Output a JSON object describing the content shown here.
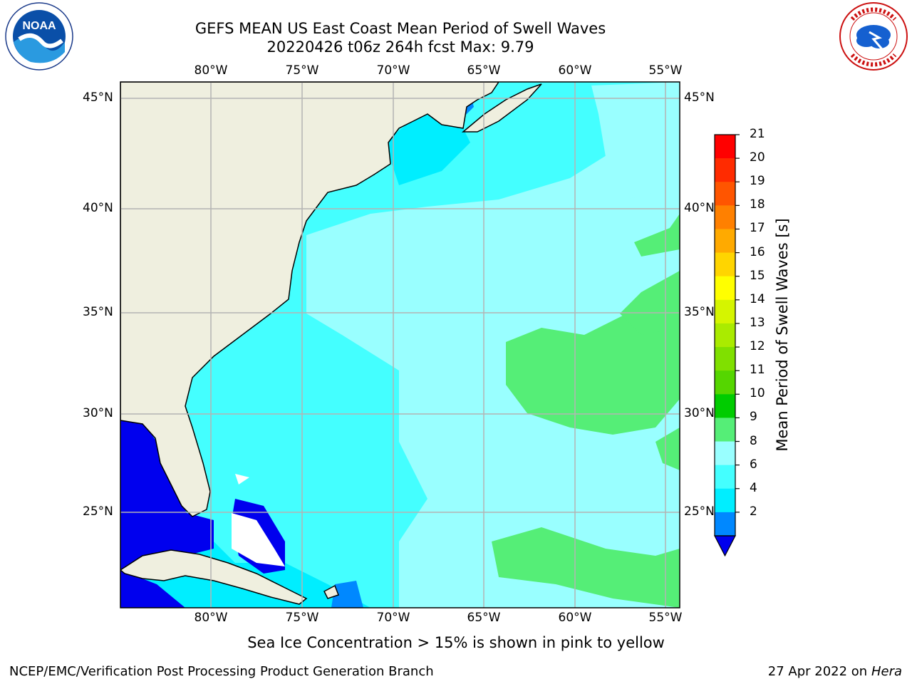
{
  "header": {
    "title_line1": "GEFS MEAN US East Coast Mean Period of Swell Waves",
    "title_line2": "20220426 t06z 264h fcst   Max: 9.79"
  },
  "logos": {
    "left": {
      "icon": "noaa-logo",
      "text": "NOAA"
    },
    "right": {
      "icon": "national-weather-service-logo"
    }
  },
  "map": {
    "region": "US East Coast / Western North Atlantic",
    "lon_labels": [
      "80°W",
      "75°W",
      "70°W",
      "65°W",
      "60°W",
      "55°W"
    ],
    "lat_labels": [
      "45°N",
      "40°N",
      "35°N",
      "30°N",
      "25°N"
    ],
    "colors": {
      "land": "#efefdf",
      "grid": "#b4b4b4",
      "coast": "#000000",
      "no_data": "#ffffff"
    }
  },
  "colorbar": {
    "label": "Mean Period of Swell Waves [s]",
    "ticks": [
      "21",
      "20",
      "19",
      "18",
      "17",
      "16",
      "15",
      "14",
      "13",
      "12",
      "11",
      "10",
      "9",
      "8",
      "6",
      "4",
      "2"
    ],
    "colors": [
      "#ff0000",
      "#ff2b00",
      "#ff5500",
      "#ff8000",
      "#ffaa00",
      "#ffd500",
      "#ffff00",
      "#d5f500",
      "#aaeb00",
      "#80e000",
      "#55d600",
      "#00cc00",
      "#55ee77",
      "#99ffff",
      "#44ffff",
      "#00eeff",
      "#0088ff"
    ],
    "extend_below_color": "#0000ee"
  },
  "note": "Sea Ice Concentration > 15% is shown in pink to yellow",
  "footer": {
    "left": "NCEP/EMC/Verification Post Processing Product Generation Branch",
    "date": "27 Apr 2022",
    "on": "on",
    "machine": "Hera"
  }
}
